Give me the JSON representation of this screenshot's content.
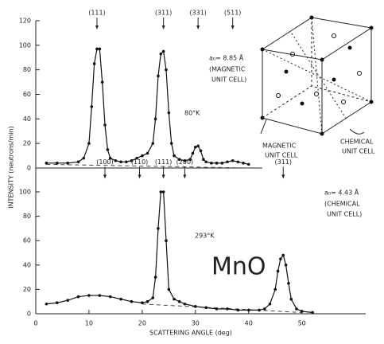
{
  "chart_data": [
    {
      "type": "line",
      "ylabel": "INTENSITY (neutrons/min)",
      "x": [
        2,
        4,
        6,
        8,
        9,
        10,
        10.5,
        11,
        11.5,
        12,
        12.5,
        13,
        13.5,
        14,
        15,
        16,
        17,
        18,
        19,
        20,
        21,
        22,
        22.5,
        23,
        23.5,
        24,
        24.5,
        25,
        25.5,
        26,
        27,
        28,
        29,
        29.5,
        30,
        30.5,
        31,
        31.5,
        32,
        33,
        34,
        35,
        36,
        37,
        38,
        39,
        40
      ],
      "series": [
        {
          "color": "#111",
          "values": [
            4,
            4,
            4,
            5,
            8,
            20,
            50,
            85,
            97,
            97,
            70,
            35,
            15,
            8,
            6,
            5,
            5,
            6,
            8,
            10,
            12,
            20,
            40,
            75,
            93,
            95,
            80,
            45,
            20,
            10,
            7,
            6,
            7,
            12,
            17,
            18,
            14,
            7,
            5,
            4,
            4,
            4,
            5,
            6,
            5,
            4,
            3
          ]
        }
      ],
      "background": {
        "x": [
          2,
          40
        ],
        "values": [
          3,
          0
        ]
      },
      "ylim": [
        0,
        120
      ],
      "yticks": [
        0,
        20,
        40,
        60,
        80,
        100,
        120
      ],
      "xlim": [
        0,
        62
      ],
      "peaks": [
        {
          "label": "(111)",
          "x": 11.5
        },
        {
          "label": "(311)",
          "x": 24
        },
        {
          "label": "(331)",
          "x": 30.5
        },
        {
          "label": "(511)",
          "x": 37
        }
      ],
      "annotations": [
        "a₀= 8.85 Å",
        "(MAGNETIC",
        "UNIT CELL)",
        "80°K"
      ],
      "inset": {
        "magnetic_label": [
          "MAGNETIC",
          "UNIT CELL"
        ],
        "chemical_label": [
          "CHEMICAL",
          "UNIT CELL"
        ]
      }
    },
    {
      "type": "line",
      "xlabel": "SCATTERING ANGLE (deg)",
      "x": [
        2,
        4,
        6,
        8,
        10,
        12,
        14,
        16,
        18,
        20,
        21,
        22,
        22.5,
        23,
        23.5,
        24,
        24.5,
        25,
        26,
        27,
        28,
        30,
        32,
        34,
        36,
        38,
        40,
        42,
        43,
        44,
        45,
        45.5,
        46,
        46.5,
        47,
        47.5,
        48,
        49,
        50,
        52
      ],
      "series": [
        {
          "color": "#111",
          "values": [
            8,
            9,
            11,
            14,
            15,
            15,
            14,
            12,
            10,
            9,
            10,
            13,
            30,
            70,
            100,
            100,
            60,
            20,
            12,
            10,
            8,
            6,
            5,
            4,
            4,
            3,
            3,
            3,
            4,
            8,
            20,
            35,
            45,
            48,
            40,
            25,
            12,
            4,
            2,
            1
          ]
        }
      ],
      "background": {
        "x": [
          20,
          50
        ],
        "values": [
          8,
          1
        ]
      },
      "ylim": [
        0,
        120
      ],
      "yticks": [
        0,
        20,
        40,
        60,
        80,
        100
      ],
      "xlim": [
        0,
        62
      ],
      "xticks": [
        0,
        10,
        20,
        30,
        40,
        50
      ],
      "peaks": [
        {
          "label": "(100)",
          "x": 13
        },
        {
          "label": "(110)",
          "x": 19.5
        },
        {
          "label": "(111)",
          "x": 24
        },
        {
          "label": "(200)",
          "x": 28
        },
        {
          "label": "(311)",
          "x": 46.5
        }
      ],
      "annotations": [
        "a₀= 4.43 Å",
        "(CHEMICAL",
        "UNIT CELL)",
        "293°K",
        "MnO"
      ]
    }
  ]
}
